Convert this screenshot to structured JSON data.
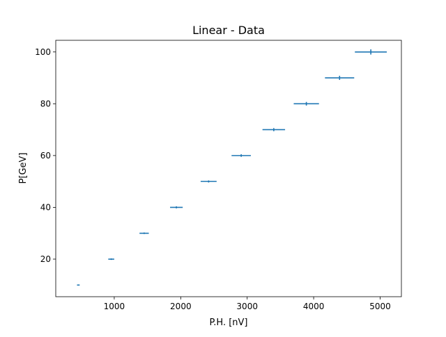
{
  "chart_data": {
    "type": "scatter",
    "title": "Linear - Data",
    "xlabel": "P.H. [nV]",
    "ylabel": "P[GeV]",
    "xlim": [
      120,
      5320
    ],
    "ylim": [
      5.5,
      104.5
    ],
    "x_ticks": [
      1000,
      2000,
      3000,
      4000,
      5000
    ],
    "y_ticks": [
      20,
      40,
      60,
      80,
      100
    ],
    "x_tick_labels": [
      "1000",
      "2000",
      "3000",
      "4000",
      "5000"
    ],
    "y_tick_labels": [
      "20",
      "40",
      "60",
      "80",
      "100"
    ],
    "grid": false,
    "legend": "none",
    "color": "#1f77b4",
    "marker": "errorbar",
    "series": [
      {
        "x": [
          460,
          955,
          1450,
          1935,
          2420,
          2910,
          3400,
          3890,
          4390,
          4860
        ],
        "y": [
          10,
          20,
          30,
          40,
          50,
          60,
          70,
          80,
          90,
          100
        ],
        "x_err": [
          20,
          45,
          70,
          95,
          120,
          145,
          170,
          190,
          220,
          240
        ],
        "y_err": [
          0.2,
          0.3,
          0.3,
          0.4,
          0.4,
          0.5,
          0.6,
          0.7,
          0.8,
          1.0
        ]
      }
    ]
  }
}
